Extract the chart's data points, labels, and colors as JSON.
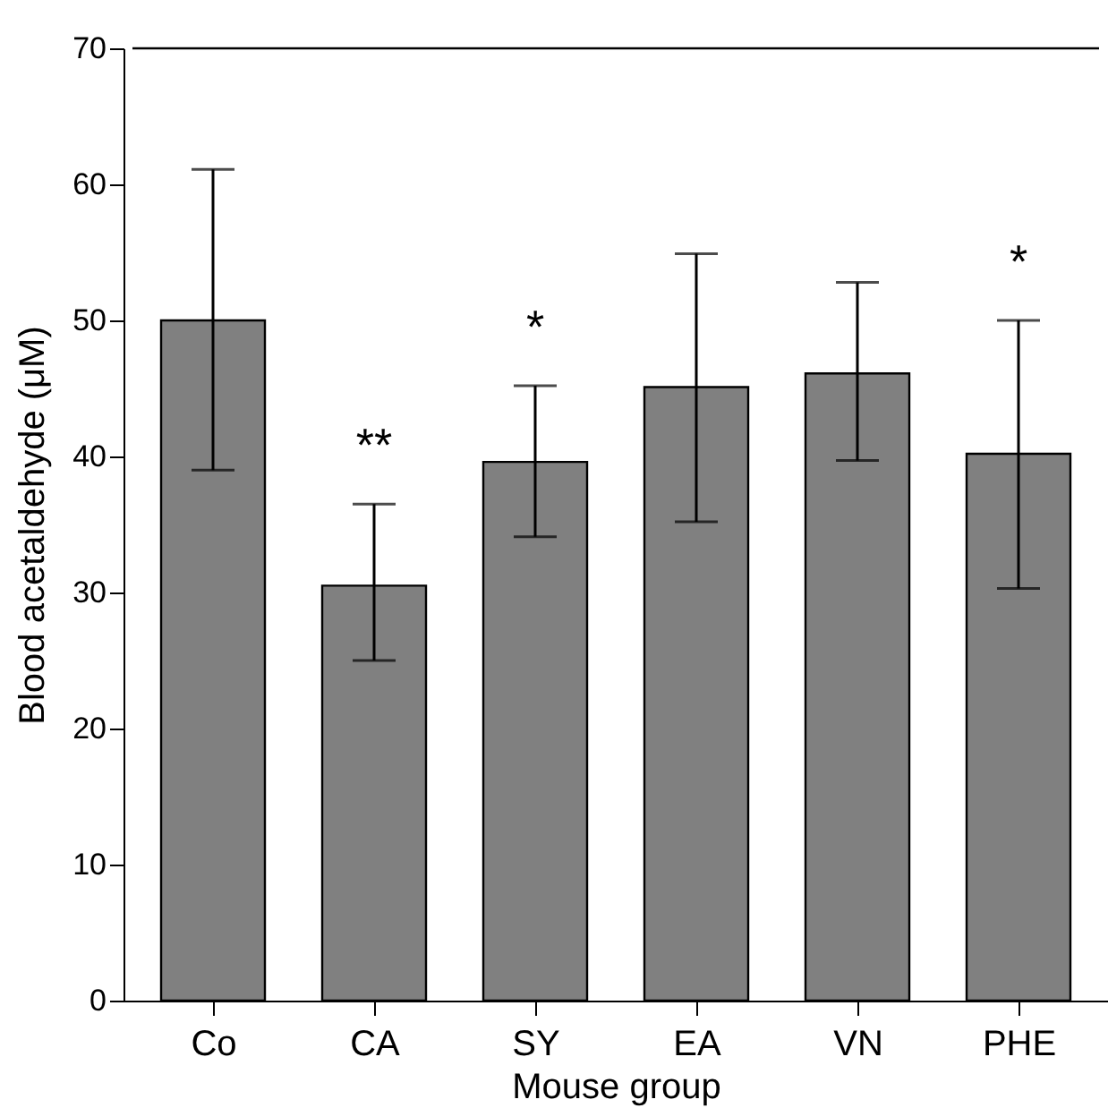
{
  "chart_data": {
    "type": "bar",
    "xlabel": "Mouse group",
    "ylabel": "Blood acetaldehyde (μM)",
    "categories": [
      "Co",
      "CA",
      "SY",
      "EA",
      "VN",
      "PHE"
    ],
    "values": [
      50.0,
      30.5,
      39.6,
      45.1,
      46.1,
      40.2
    ],
    "errors": [
      [
        39.0,
        61.1
      ],
      [
        25.0,
        36.5
      ],
      [
        34.1,
        45.2
      ],
      [
        35.2,
        54.9
      ],
      [
        39.7,
        52.8
      ],
      [
        30.3,
        50.0
      ]
    ],
    "color": "#808080",
    "ylim": [
      0,
      70
    ],
    "yticks": [
      0,
      10,
      20,
      30,
      40,
      50,
      60,
      70
    ],
    "grid": false,
    "annotations": [
      "**",
      "*",
      "*"
    ]
  }
}
